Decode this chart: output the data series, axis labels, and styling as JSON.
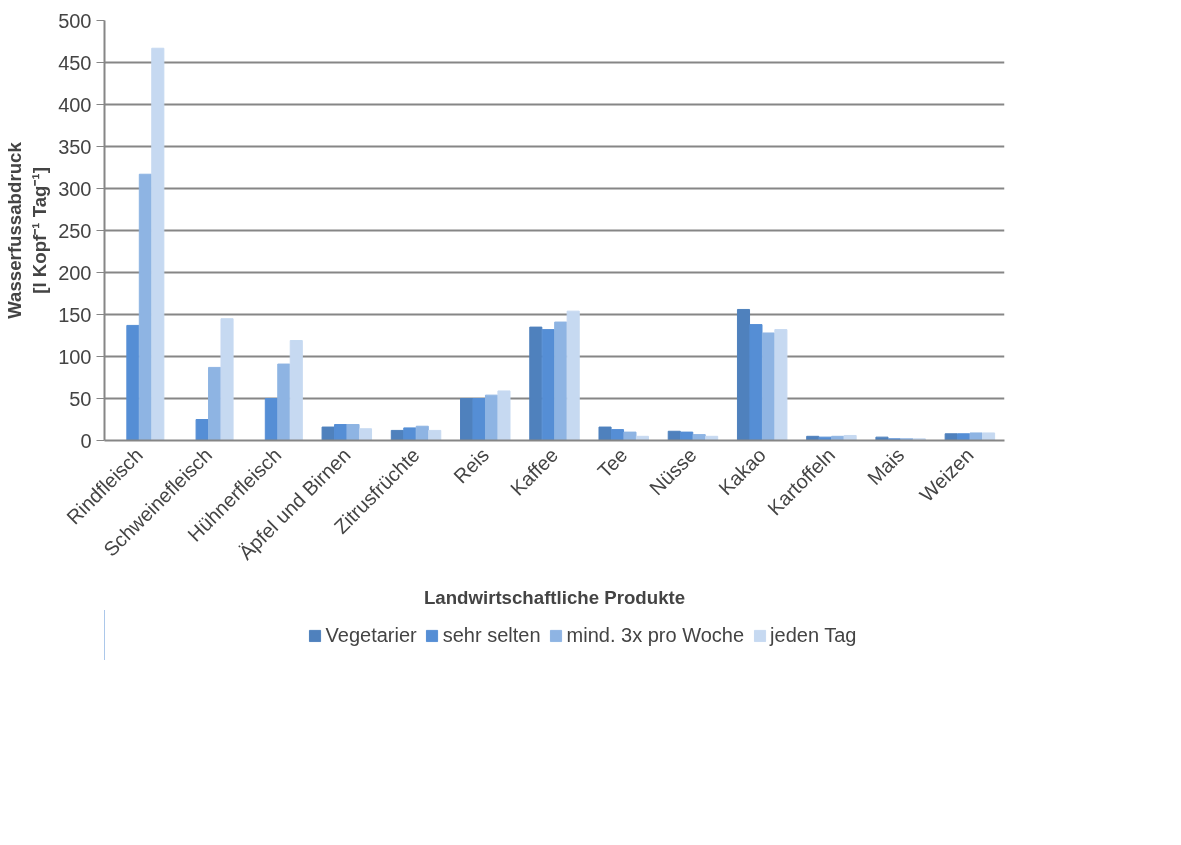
{
  "chart_data": {
    "type": "bar",
    "xlabel": "Landwirtschaftliche Produkte",
    "ylabel": "Wasserfussabdruck\n[l Kopf⁻¹ Tag⁻¹]",
    "categories": [
      "Rindfleisch",
      "Schweinefleisch",
      "Hühnerfleisch",
      "Äpfel und Birnen",
      "Zitrusfrüchte",
      "Reis",
      "Kaffee",
      "Tee",
      "Nüsse",
      "Kakao",
      "Kartoffeln",
      "Mais",
      "Weizen"
    ],
    "series": [
      {
        "name": "Vegetarier",
        "color": "#4f81bd",
        "values": [
          0,
          0,
          0,
          16,
          12,
          50,
          135,
          16,
          11,
          156,
          5,
          4,
          8
        ]
      },
      {
        "name": "sehr selten",
        "color": "#558ed5",
        "values": [
          137,
          25,
          50,
          19,
          15,
          50,
          132,
          13,
          10,
          138,
          4,
          2,
          8
        ]
      },
      {
        "name": "mind. 3x pro Woche",
        "color": "#8eb4e3",
        "values": [
          317,
          87,
          91,
          19,
          17,
          54,
          141,
          10,
          7,
          128,
          5,
          2,
          9
        ]
      },
      {
        "name": "jeden Tag",
        "color": "#c6d9f1",
        "values": [
          467,
          145,
          119,
          14,
          12,
          59,
          154,
          5,
          5,
          132,
          6,
          2,
          9
        ]
      }
    ],
    "ylim": [
      0,
      500
    ],
    "yticks": [
      0,
      50,
      100,
      150,
      200,
      250,
      300,
      350,
      400,
      450,
      500
    ],
    "grid": "y",
    "legend": "bottom"
  }
}
